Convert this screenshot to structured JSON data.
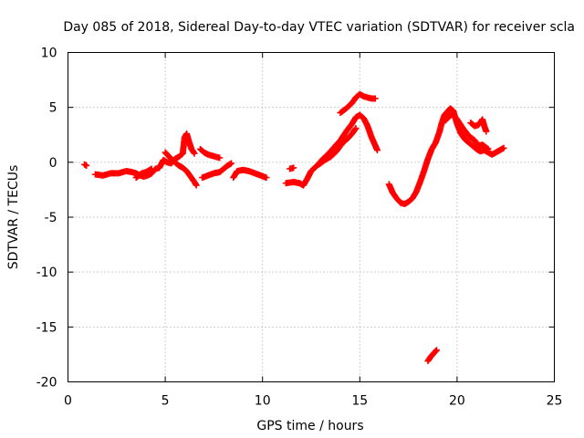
{
  "chart_data": {
    "type": "scatter",
    "title": "Day 085 of 2018, Sidereal Day-to-day VTEC variation (SDTVAR) for receiver scla",
    "xlabel": "GPS time / hours",
    "ylabel": "SDTVAR / TECUs",
    "xlim": [
      0,
      25
    ],
    "ylim": [
      -20,
      10
    ],
    "xticks": [
      0,
      5,
      10,
      15,
      20,
      25
    ],
    "yticks": [
      -20,
      -15,
      -10,
      -5,
      0,
      5,
      10
    ],
    "grid": true,
    "marker": "plus",
    "color": "#ff0000",
    "segments": [
      [
        [
          0.85,
          -0.2
        ],
        [
          0.95,
          -0.3
        ]
      ],
      [
        [
          1.4,
          -1.1
        ],
        [
          1.8,
          -1.2
        ],
        [
          2.2,
          -1.0
        ],
        [
          2.6,
          -1.0
        ],
        [
          3.0,
          -0.8
        ],
        [
          3.3,
          -0.9
        ],
        [
          3.5,
          -1.0
        ],
        [
          3.7,
          -1.2
        ],
        [
          3.9,
          -1.3
        ],
        [
          4.1,
          -1.2
        ],
        [
          4.3,
          -1.0
        ],
        [
          4.5,
          -0.6
        ],
        [
          4.7,
          -0.5
        ],
        [
          4.9,
          0.2
        ],
        [
          5.1,
          0.0
        ],
        [
          5.3,
          -0.1
        ],
        [
          5.5,
          0.3
        ],
        [
          5.7,
          0.5
        ],
        [
          5.9,
          0.8
        ],
        [
          6.0,
          2.3
        ],
        [
          6.1,
          2.6
        ],
        [
          6.2,
          2.0
        ],
        [
          6.35,
          1.2
        ],
        [
          6.5,
          0.8
        ]
      ],
      [
        [
          3.5,
          -1.4
        ],
        [
          3.8,
          -1.0
        ],
        [
          4.0,
          -0.9
        ],
        [
          4.3,
          -0.6
        ]
      ],
      [
        [
          5.0,
          0.9
        ],
        [
          5.2,
          0.5
        ],
        [
          5.5,
          0.0
        ],
        [
          5.7,
          -0.3
        ],
        [
          5.9,
          -0.5
        ],
        [
          6.1,
          -0.8
        ],
        [
          6.3,
          -1.3
        ],
        [
          6.5,
          -1.8
        ],
        [
          6.6,
          -2.1
        ]
      ],
      [
        [
          6.8,
          1.2
        ],
        [
          7.0,
          0.9
        ],
        [
          7.2,
          0.7
        ],
        [
          7.4,
          0.6
        ],
        [
          7.6,
          0.5
        ],
        [
          7.8,
          0.4
        ]
      ],
      [
        [
          6.9,
          -1.4
        ],
        [
          7.2,
          -1.2
        ],
        [
          7.5,
          -1.0
        ],
        [
          7.8,
          -0.9
        ],
        [
          8.0,
          -0.6
        ],
        [
          8.2,
          -0.3
        ],
        [
          8.4,
          -0.1
        ]
      ],
      [
        [
          8.5,
          -1.4
        ],
        [
          8.7,
          -0.8
        ],
        [
          9.0,
          -0.7
        ],
        [
          9.3,
          -0.8
        ],
        [
          9.6,
          -1.0
        ],
        [
          9.9,
          -1.2
        ],
        [
          10.2,
          -1.4
        ]
      ],
      [
        [
          11.2,
          -1.9
        ],
        [
          11.6,
          -1.8
        ],
        [
          11.9,
          -1.9
        ],
        [
          12.1,
          -2.1
        ],
        [
          12.3,
          -1.5
        ],
        [
          12.5,
          -0.8
        ],
        [
          12.8,
          -0.3
        ],
        [
          13.1,
          0.3
        ],
        [
          13.4,
          0.8
        ],
        [
          13.7,
          1.4
        ],
        [
          14.0,
          2.0
        ],
        [
          14.3,
          2.8
        ],
        [
          14.6,
          3.5
        ],
        [
          14.8,
          4.1
        ],
        [
          15.0,
          4.3
        ],
        [
          15.2,
          4.0
        ],
        [
          15.4,
          3.3
        ],
        [
          15.6,
          2.3
        ],
        [
          15.8,
          1.5
        ],
        [
          15.9,
          1.1
        ]
      ],
      [
        [
          11.4,
          -0.6
        ],
        [
          11.6,
          -0.5
        ]
      ],
      [
        [
          12.9,
          -0.2
        ],
        [
          13.2,
          0.2
        ],
        [
          13.5,
          0.5
        ],
        [
          13.8,
          1.0
        ],
        [
          14.0,
          1.5
        ],
        [
          14.2,
          1.9
        ],
        [
          14.4,
          2.2
        ],
        [
          14.6,
          2.6
        ],
        [
          14.8,
          3.1
        ]
      ],
      [
        [
          14.0,
          4.5
        ],
        [
          14.3,
          4.9
        ],
        [
          14.6,
          5.4
        ],
        [
          14.8,
          5.9
        ],
        [
          15.0,
          6.2
        ],
        [
          15.2,
          6.0
        ],
        [
          15.4,
          5.9
        ],
        [
          15.6,
          5.8
        ],
        [
          15.8,
          5.8
        ]
      ],
      [
        [
          16.5,
          -2.0
        ],
        [
          16.7,
          -2.8
        ],
        [
          16.9,
          -3.3
        ],
        [
          17.1,
          -3.7
        ],
        [
          17.3,
          -3.8
        ],
        [
          17.5,
          -3.6
        ],
        [
          17.7,
          -3.3
        ],
        [
          17.9,
          -2.7
        ],
        [
          18.1,
          -1.8
        ],
        [
          18.3,
          -0.8
        ],
        [
          18.5,
          0.3
        ],
        [
          18.7,
          1.2
        ],
        [
          18.9,
          1.8
        ],
        [
          19.1,
          2.8
        ],
        [
          19.2,
          3.5
        ],
        [
          19.35,
          4.3
        ],
        [
          19.5,
          4.6
        ],
        [
          19.65,
          4.9
        ],
        [
          19.8,
          4.7
        ],
        [
          20.0,
          3.5
        ],
        [
          20.2,
          2.6
        ],
        [
          20.4,
          2.1
        ],
        [
          20.6,
          1.8
        ],
        [
          20.8,
          1.5
        ],
        [
          21.0,
          1.2
        ],
        [
          21.2,
          1.0
        ],
        [
          21.4,
          1.1
        ],
        [
          21.6,
          0.9
        ],
        [
          21.8,
          0.7
        ],
        [
          22.0,
          0.9
        ],
        [
          22.2,
          1.1
        ],
        [
          22.4,
          1.3
        ]
      ],
      [
        [
          19.4,
          3.8
        ],
        [
          19.6,
          4.2
        ],
        [
          19.8,
          4.4
        ],
        [
          20.0,
          3.9
        ],
        [
          20.3,
          3.1
        ],
        [
          20.6,
          2.4
        ],
        [
          20.9,
          2.0
        ],
        [
          21.1,
          1.5
        ],
        [
          21.3,
          1.6
        ],
        [
          21.6,
          1.2
        ]
      ],
      [
        [
          20.7,
          3.6
        ],
        [
          20.9,
          3.3
        ],
        [
          21.1,
          3.4
        ],
        [
          21.3,
          3.9
        ],
        [
          21.4,
          3.3
        ],
        [
          21.5,
          2.8
        ]
      ],
      [
        [
          18.5,
          -18.1
        ],
        [
          18.65,
          -17.7
        ],
        [
          18.8,
          -17.4
        ],
        [
          18.95,
          -17.1
        ]
      ]
    ]
  }
}
